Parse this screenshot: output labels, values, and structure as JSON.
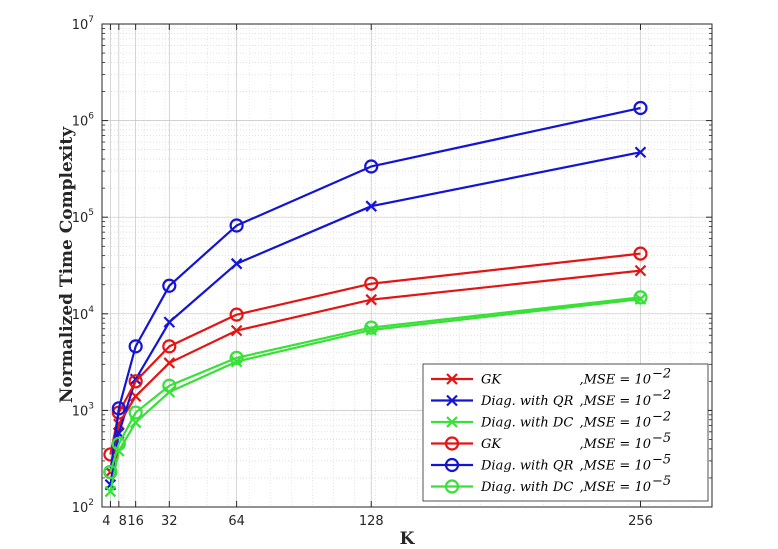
{
  "chart_data": {
    "type": "line",
    "xlabel": "K",
    "ylabel": "Normalized Time Complexity",
    "x": [
      4,
      8,
      16,
      32,
      64,
      128,
      256
    ],
    "xticks": [
      "4",
      "8",
      "16",
      "32",
      "64",
      "128",
      "256"
    ],
    "xlim": [
      0,
      290
    ],
    "ylim": [
      100,
      10000000
    ],
    "yscale": "log",
    "yticks": [
      {
        "value": 100,
        "base": "10",
        "exp": "2"
      },
      {
        "value": 1000,
        "base": "10",
        "exp": "3"
      },
      {
        "value": 10000,
        "base": "10",
        "exp": "4"
      },
      {
        "value": 100000,
        "base": "10",
        "exp": "5"
      },
      {
        "value": 1000000,
        "base": "10",
        "exp": "6"
      },
      {
        "value": 10000000,
        "base": "10",
        "exp": "7"
      }
    ],
    "grid": true,
    "legend_position": "bottom-right",
    "series": [
      {
        "name": "GK",
        "mse_label": ",MSE = 10",
        "mse_exp": "−2",
        "color": "#e41414",
        "marker": "x",
        "values": [
          230,
          720,
          1400,
          3100,
          6700,
          14000,
          28000
        ]
      },
      {
        "name": "Diag. with QR",
        "mse_label": ",MSE = 10",
        "mse_exp": "−2",
        "color": "#1414d4",
        "marker": "x",
        "values": [
          170,
          580,
          2100,
          8200,
          33000,
          130000,
          470000
        ]
      },
      {
        "name": "Diag. with DC",
        "mse_label": ",MSE = 10",
        "mse_exp": "−2",
        "color": "#38e038",
        "marker": "x",
        "values": [
          145,
          380,
          750,
          1550,
          3200,
          6800,
          14200
        ]
      },
      {
        "name": "GK",
        "mse_label": ",MSE = 10",
        "mse_exp": "−5",
        "color": "#e41414",
        "marker": "o",
        "values": [
          350,
          950,
          2000,
          4600,
          9800,
          20500,
          42000
        ]
      },
      {
        "name": "Diag. with QR",
        "mse_label": ",MSE = 10",
        "mse_exp": "−5",
        "color": "#1414d4",
        "marker": "o",
        "values": [
          230,
          1050,
          4600,
          19500,
          82000,
          335000,
          1350000
        ]
      },
      {
        "name": "Diag. with DC",
        "mse_label": ",MSE = 10",
        "mse_exp": "−5",
        "color": "#38e038",
        "marker": "o",
        "values": [
          230,
          450,
          950,
          1800,
          3500,
          7200,
          14800
        ]
      }
    ]
  }
}
